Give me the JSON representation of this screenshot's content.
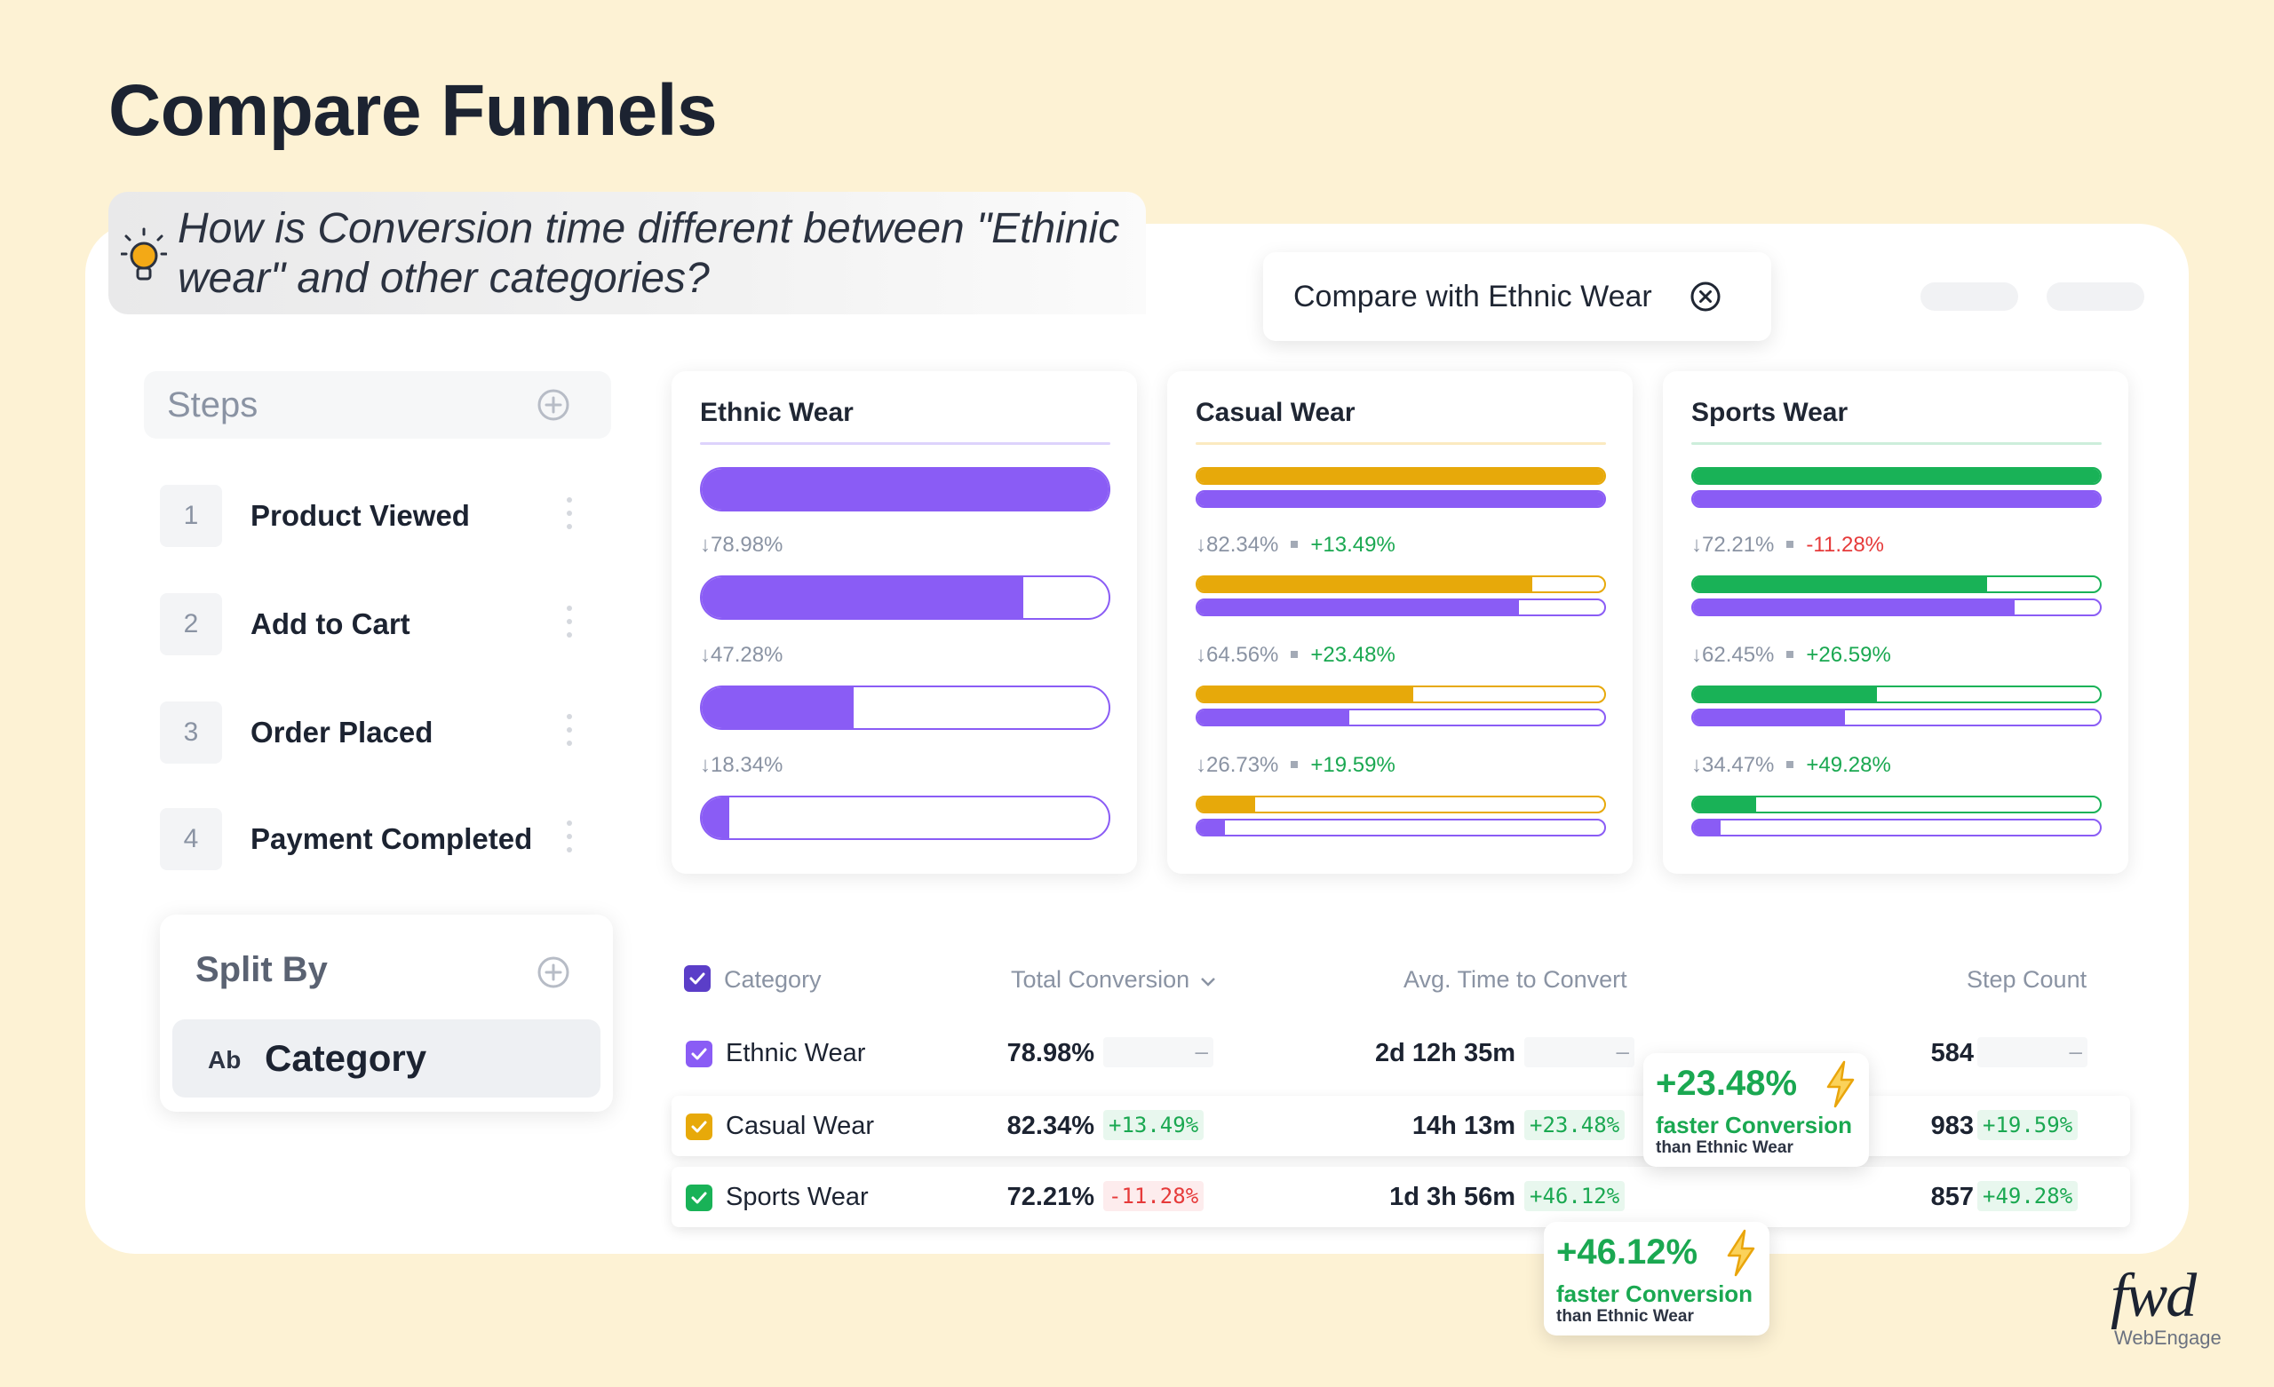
{
  "page_title": "Compare Funnels",
  "question": {
    "icon": "lightbulb-icon",
    "text": "How is Conversion time different between \"Ethinic wear\" and other categories?"
  },
  "compare_pill": {
    "label": "Compare with Ethnic Wear",
    "icon": "close-circle-icon"
  },
  "steps": {
    "title": "Steps",
    "items": [
      {
        "num": "1",
        "name": "Product Viewed"
      },
      {
        "num": "2",
        "name": "Add to Cart"
      },
      {
        "num": "3",
        "name": "Order Placed"
      },
      {
        "num": "4",
        "name": "Payment Completed"
      }
    ]
  },
  "split_by": {
    "title": "Split By",
    "chip_prefix": "Ab",
    "chip_label": "Category"
  },
  "colors": {
    "ethnic": "#8a5cf5",
    "casual": "#e7a90a",
    "sports": "#19b257"
  },
  "funnels": [
    {
      "title": "Ethnic Wear",
      "steps": [
        {
          "fill": 1.0
        },
        {
          "fill": 0.7898
        },
        {
          "fill": 0.3734
        },
        {
          "fill": 0.0685
        }
      ],
      "stats": [
        {
          "pct": "↓78.98%",
          "delta": ""
        },
        {
          "pct": "↓47.28%",
          "delta": ""
        },
        {
          "pct": "↓18.34%",
          "delta": ""
        }
      ]
    },
    {
      "title": "Casual Wear",
      "steps": [
        {
          "fill": 1.0,
          "base": 1.0
        },
        {
          "fill": 0.8234,
          "base": 0.7898
        },
        {
          "fill": 0.5316,
          "base": 0.3734
        },
        {
          "fill": 0.1421,
          "base": 0.0685
        }
      ],
      "stats": [
        {
          "pct": "↓82.34%",
          "delta": "+13.49%"
        },
        {
          "pct": "↓64.56%",
          "delta": "+23.48%"
        },
        {
          "pct": "↓26.73%",
          "delta": "+19.59%"
        }
      ]
    },
    {
      "title": "Sports Wear",
      "steps": [
        {
          "fill": 1.0,
          "base": 1.0
        },
        {
          "fill": 0.7221,
          "base": 0.7898
        },
        {
          "fill": 0.4509,
          "base": 0.3734
        },
        {
          "fill": 0.1554,
          "base": 0.0685
        }
      ],
      "stats": [
        {
          "pct": "↓72.21%",
          "delta": "-11.28%"
        },
        {
          "pct": "↓62.45%",
          "delta": "+26.59%"
        },
        {
          "pct": "↓34.47%",
          "delta": "+49.28%"
        }
      ]
    }
  ],
  "table": {
    "headers": {
      "category": "Category",
      "total": "Total Conversion",
      "avg": "Avg. Time to Convert",
      "count": "Step Count"
    },
    "rows": [
      {
        "category": "Ethnic Wear",
        "total": "78.98%",
        "total_delta": "–",
        "avg": "2d 12h 35m",
        "avg_delta": "–",
        "count": "584",
        "count_delta": "–"
      },
      {
        "category": "Casual Wear",
        "total": "82.34%",
        "total_delta": "+13.49%",
        "avg": "14h 13m",
        "avg_delta": "+23.48%",
        "count": "983",
        "count_delta": "+19.59%"
      },
      {
        "category": "Sports Wear",
        "total": "72.21%",
        "total_delta": "-11.28%",
        "avg": "1d 3h 56m",
        "avg_delta": "+46.12%",
        "count": "857",
        "count_delta": "+49.28%"
      }
    ]
  },
  "callouts": [
    {
      "big": "+23.48%",
      "mid": "faster Conversion",
      "small": "than Ethnic Wear"
    },
    {
      "big": "+46.12%",
      "mid": "faster Conversion",
      "small": "than Ethnic Wear"
    }
  ],
  "logo": {
    "mark": "fwd",
    "brand": "WebEngage"
  }
}
